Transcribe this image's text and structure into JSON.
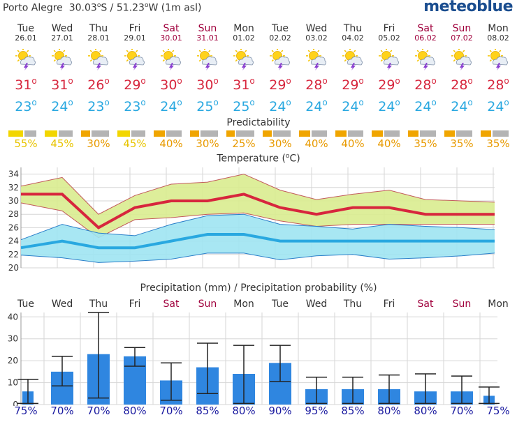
{
  "header": {
    "location": "Porto Alegre",
    "lat": "30.03",
    "lat_dir": "S",
    "sep": "/",
    "lon": "51.23",
    "lon_dir": "W",
    "alt": "(1m asl)",
    "deg": "o",
    "brand": "meteoblue"
  },
  "days": [
    {
      "name": "Tue",
      "date": "26.01",
      "weekend": false,
      "max": "31",
      "min": "23",
      "pred": 55
    },
    {
      "name": "Wed",
      "date": "27.01",
      "weekend": false,
      "max": "31",
      "min": "24",
      "pred": 45
    },
    {
      "name": "Thu",
      "date": "28.01",
      "weekend": false,
      "max": "26",
      "min": "23",
      "pred": 30
    },
    {
      "name": "Fri",
      "date": "29.01",
      "weekend": false,
      "max": "29",
      "min": "23",
      "pred": 45
    },
    {
      "name": "Sat",
      "date": "30.01",
      "weekend": true,
      "max": "30",
      "min": "24",
      "pred": 40
    },
    {
      "name": "Sun",
      "date": "31.01",
      "weekend": true,
      "max": "30",
      "min": "25",
      "pred": 30
    },
    {
      "name": "Mon",
      "date": "01.02",
      "weekend": false,
      "max": "31",
      "min": "25",
      "pred": 25
    },
    {
      "name": "Tue",
      "date": "02.02",
      "weekend": false,
      "max": "29",
      "min": "24",
      "pred": 30
    },
    {
      "name": "Wed",
      "date": "03.02",
      "weekend": false,
      "max": "28",
      "min": "24",
      "pred": 40
    },
    {
      "name": "Thu",
      "date": "04.02",
      "weekend": false,
      "max": "29",
      "min": "24",
      "pred": 40
    },
    {
      "name": "Fri",
      "date": "05.02",
      "weekend": false,
      "max": "29",
      "min": "24",
      "pred": 40
    },
    {
      "name": "Sat",
      "date": "06.02",
      "weekend": true,
      "max": "28",
      "min": "24",
      "pred": 35
    },
    {
      "name": "Sun",
      "date": "07.02",
      "weekend": true,
      "max": "28",
      "min": "24",
      "pred": 35
    },
    {
      "name": "Mon",
      "date": "08.02",
      "weekend": false,
      "max": "28",
      "min": "24",
      "pred": 35
    }
  ],
  "predictability": {
    "title": "Predictability",
    "pct_suffix": "%"
  },
  "colors": {
    "max": "#d7263d",
    "min": "#29a8e0",
    "pred_high": "#f2d600",
    "pred_mid": "#f0a500",
    "rain": "#2f86e0",
    "prob": "#1a1aa0",
    "weekend": "#a0003c",
    "maxband": "#d9ec8f",
    "minband": "#9fe4f2"
  },
  "temp_title_pre": "Temperature (",
  "temp_title_unit": "C)",
  "precip_title": "Precipitation (mm) / Precipitation probability (%)",
  "chart_data": [
    {
      "type": "line",
      "title": "Temperature (°C)",
      "categories": [
        "26.01",
        "27.01",
        "28.01",
        "29.01",
        "30.01",
        "31.01",
        "01.02",
        "02.02",
        "03.02",
        "04.02",
        "05.02",
        "06.02",
        "07.02",
        "08.02"
      ],
      "ylim": [
        20,
        35
      ],
      "yticks": [
        20,
        22,
        24,
        26,
        28,
        30,
        32,
        34
      ],
      "grid": true,
      "series": [
        {
          "name": "max",
          "values": [
            31,
            31,
            26,
            29,
            30,
            30,
            31,
            29,
            28,
            29,
            29,
            28,
            28,
            28
          ],
          "band_upper": [
            32.2,
            33.5,
            28.0,
            30.8,
            32.5,
            32.8,
            34.0,
            31.6,
            30.2,
            31.0,
            31.6,
            30.2,
            30.0,
            29.8
          ],
          "band_lower": [
            29.7,
            28.5,
            24.5,
            27.2,
            27.5,
            28.0,
            28.2,
            27.0,
            26.2,
            26.5,
            26.5,
            26.5,
            26.5,
            26.5
          ]
        },
        {
          "name": "min",
          "values": [
            23,
            24,
            23,
            23,
            24,
            25,
            25,
            24,
            24,
            24,
            24,
            24,
            24,
            24
          ],
          "band_upper": [
            24.2,
            26.5,
            25.2,
            24.8,
            26.5,
            27.8,
            28.0,
            26.5,
            26.2,
            25.8,
            26.5,
            26.2,
            26.0,
            25.7
          ],
          "band_lower": [
            21.9,
            21.5,
            20.8,
            21.0,
            21.3,
            22.2,
            22.2,
            21.2,
            21.8,
            22.0,
            21.3,
            21.5,
            21.8,
            22.2
          ]
        }
      ]
    },
    {
      "type": "bar",
      "title": "Precipitation (mm) / Precipitation probability (%)",
      "categories": [
        "Tue",
        "Wed",
        "Thu",
        "Fri",
        "Sat",
        "Sun",
        "Mon",
        "Tue",
        "Wed",
        "Thu",
        "Fri",
        "Sat",
        "Sun",
        "Mon"
      ],
      "ylim": [
        0,
        42
      ],
      "yticks": [
        0,
        10,
        20,
        30,
        40
      ],
      "values": [
        6,
        15,
        23,
        22,
        11,
        17,
        14,
        19,
        7,
        7,
        7,
        6,
        6,
        4
      ],
      "range_low": [
        0.5,
        8.5,
        3,
        17.5,
        2,
        5,
        0.5,
        10.5,
        0.5,
        0.5,
        0.5,
        0.5,
        0.5,
        0.5
      ],
      "range_high": [
        11.5,
        22,
        42,
        26,
        19,
        28,
        27,
        27,
        12.5,
        12.5,
        13.5,
        14,
        13,
        8
      ],
      "probability": [
        75,
        70,
        70,
        80,
        70,
        85,
        80,
        90,
        95,
        85,
        80,
        80,
        70,
        75
      ],
      "probability_suffix": "%"
    }
  ]
}
